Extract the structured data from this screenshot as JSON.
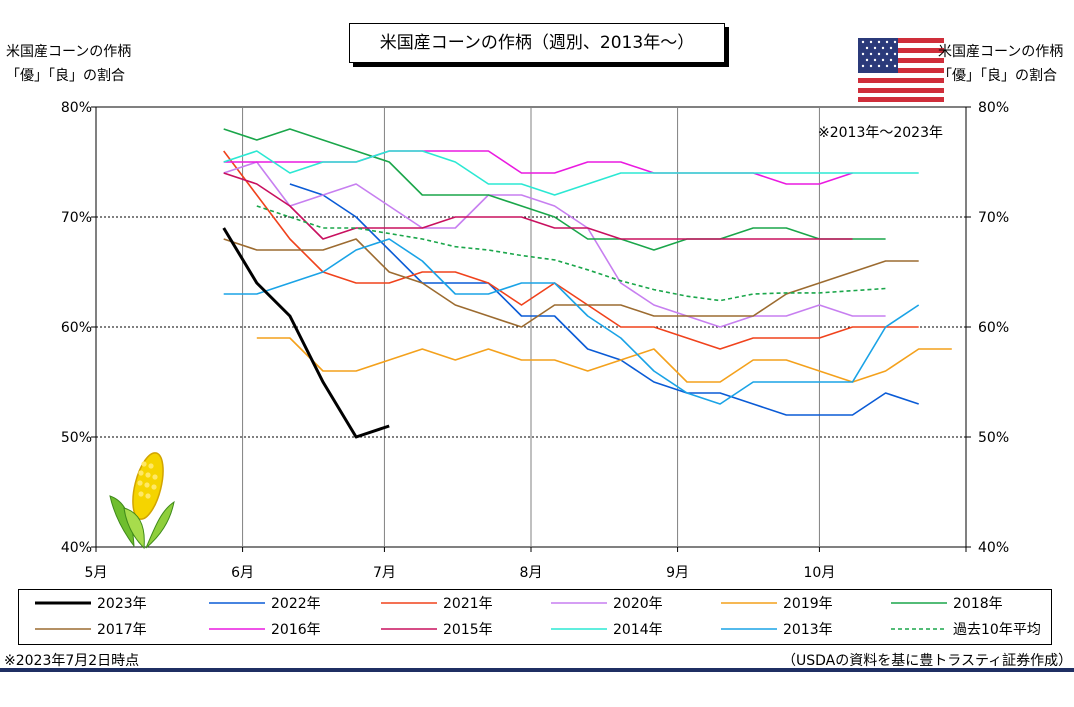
{
  "chart_data": {
    "type": "line",
    "title": "米国産コーンの作柄（週別、2013年～）",
    "ylabel_left": [
      "米国産コーンの作柄",
      "「優」「良」の割合"
    ],
    "ylabel_right": [
      "米国産コーンの作柄",
      "「優」「良」の割合"
    ],
    "annotation": "※2013年～2023年",
    "ylim": [
      40,
      80
    ],
    "yticks": [
      "40%",
      "50%",
      "60%",
      "70%",
      "80%"
    ],
    "ytick_values": [
      40,
      50,
      60,
      70,
      80
    ],
    "xlim": [
      "2023-05-01",
      "2023-11-01"
    ],
    "xticks": [
      {
        "label": "5月",
        "date": "2023-05-01"
      },
      {
        "label": "6月",
        "date": "2023-06-01"
      },
      {
        "label": "7月",
        "date": "2023-07-01"
      },
      {
        "label": "8月",
        "date": "2023-08-01"
      },
      {
        "label": "9月",
        "date": "2023-09-01"
      },
      {
        "label": "10月",
        "date": "2023-10-01"
      },
      {
        "label": "",
        "date": "2023-11-01"
      }
    ],
    "grid": true,
    "legend": "bottom",
    "series": [
      {
        "name": "2023年",
        "color": "#000000",
        "width": 3,
        "dash": "",
        "x": [
          "2023-05-28",
          "2023-06-04",
          "2023-06-11",
          "2023-06-18",
          "2023-06-25",
          "2023-07-02"
        ],
        "y": [
          69,
          64,
          61,
          55,
          50,
          51
        ]
      },
      {
        "name": "2022年",
        "color": "#0a5bd6",
        "width": 1.6,
        "dash": "",
        "x": [
          "2023-06-11",
          "2023-06-18",
          "2023-06-25",
          "2023-07-02",
          "2023-07-09",
          "2023-07-16",
          "2023-07-23",
          "2023-07-30",
          "2023-08-06",
          "2023-08-13",
          "2023-08-20",
          "2023-08-27",
          "2023-09-03",
          "2023-09-10",
          "2023-09-17",
          "2023-09-24",
          "2023-10-01",
          "2023-10-08",
          "2023-10-15",
          "2023-10-22"
        ],
        "y": [
          73,
          72,
          70,
          67,
          64,
          64,
          64,
          61,
          61,
          58,
          57,
          55,
          54,
          54,
          53,
          52,
          52,
          52,
          54,
          53
        ]
      },
      {
        "name": "2021年",
        "color": "#f0421c",
        "width": 1.6,
        "dash": "",
        "x": [
          "2023-05-28",
          "2023-06-04",
          "2023-06-11",
          "2023-06-18",
          "2023-06-25",
          "2023-07-02",
          "2023-07-09",
          "2023-07-16",
          "2023-07-23",
          "2023-07-30",
          "2023-08-06",
          "2023-08-13",
          "2023-08-20",
          "2023-08-27",
          "2023-09-03",
          "2023-09-10",
          "2023-09-17",
          "2023-09-24",
          "2023-10-01",
          "2023-10-08",
          "2023-10-15",
          "2023-10-22"
        ],
        "y": [
          76,
          72,
          68,
          65,
          64,
          64,
          65,
          65,
          64,
          62,
          64,
          62,
          60,
          60,
          59,
          58,
          59,
          59,
          59,
          60,
          60,
          60
        ]
      },
      {
        "name": "2020年",
        "color": "#c77ff0",
        "width": 1.6,
        "dash": "",
        "x": [
          "2023-05-28",
          "2023-06-04",
          "2023-06-11",
          "2023-06-18",
          "2023-06-25",
          "2023-07-02",
          "2023-07-09",
          "2023-07-16",
          "2023-07-23",
          "2023-07-30",
          "2023-08-06",
          "2023-08-13",
          "2023-08-20",
          "2023-08-27",
          "2023-09-03",
          "2023-09-10",
          "2023-09-17",
          "2023-09-24",
          "2023-10-01",
          "2023-10-08",
          "2023-10-15"
        ],
        "y": [
          74,
          75,
          71,
          72,
          73,
          71,
          69,
          69,
          72,
          72,
          71,
          69,
          64,
          62,
          61,
          60,
          61,
          61,
          62,
          61,
          61
        ]
      },
      {
        "name": "2019年",
        "color": "#f4a11c",
        "width": 1.6,
        "dash": "",
        "x": [
          "2023-06-04",
          "2023-06-11",
          "2023-06-18",
          "2023-06-25",
          "2023-07-02",
          "2023-07-09",
          "2023-07-16",
          "2023-07-23",
          "2023-07-30",
          "2023-08-06",
          "2023-08-13",
          "2023-08-20",
          "2023-08-27",
          "2023-09-03",
          "2023-09-10",
          "2023-09-17",
          "2023-09-24",
          "2023-10-01",
          "2023-10-08",
          "2023-10-15",
          "2023-10-22",
          "2023-10-29"
        ],
        "y": [
          59,
          59,
          56,
          56,
          57,
          58,
          57,
          58,
          57,
          57,
          56,
          57,
          58,
          55,
          55,
          57,
          57,
          56,
          55,
          56,
          58,
          58
        ]
      },
      {
        "name": "2018年",
        "color": "#1aa64a",
        "width": 1.6,
        "dash": "",
        "x": [
          "2023-05-28",
          "2023-06-04",
          "2023-06-11",
          "2023-06-18",
          "2023-06-25",
          "2023-07-02",
          "2023-07-09",
          "2023-07-16",
          "2023-07-23",
          "2023-07-30",
          "2023-08-06",
          "2023-08-13",
          "2023-08-20",
          "2023-08-27",
          "2023-09-03",
          "2023-09-10",
          "2023-09-17",
          "2023-09-24",
          "2023-10-01",
          "2023-10-08",
          "2023-10-15"
        ],
        "y": [
          78,
          77,
          78,
          77,
          76,
          75,
          72,
          72,
          72,
          71,
          70,
          68,
          68,
          67,
          68,
          68,
          69,
          69,
          68,
          68,
          68
        ]
      },
      {
        "name": "2017年",
        "color": "#9c6b30",
        "width": 1.6,
        "dash": "",
        "x": [
          "2023-05-28",
          "2023-06-04",
          "2023-06-11",
          "2023-06-18",
          "2023-06-25",
          "2023-07-02",
          "2023-07-09",
          "2023-07-16",
          "2023-07-23",
          "2023-07-30",
          "2023-08-06",
          "2023-08-13",
          "2023-08-20",
          "2023-08-27",
          "2023-09-03",
          "2023-09-10",
          "2023-09-17",
          "2023-09-24",
          "2023-10-01",
          "2023-10-08",
          "2023-10-15",
          "2023-10-22"
        ],
        "y": [
          68,
          67,
          67,
          67,
          68,
          65,
          64,
          62,
          61,
          60,
          62,
          62,
          62,
          61,
          61,
          61,
          61,
          63,
          64,
          65,
          66,
          66
        ]
      },
      {
        "name": "2016年",
        "color": "#ea1ae0",
        "width": 1.6,
        "dash": "",
        "x": [
          "2023-05-28",
          "2023-06-04",
          "2023-06-11",
          "2023-06-18",
          "2023-06-25",
          "2023-07-02",
          "2023-07-09",
          "2023-07-16",
          "2023-07-23",
          "2023-07-30",
          "2023-08-06",
          "2023-08-13",
          "2023-08-20",
          "2023-08-27",
          "2023-09-03",
          "2023-09-10",
          "2023-09-17",
          "2023-09-24",
          "2023-10-01",
          "2023-10-08"
        ],
        "y": [
          75,
          75,
          75,
          75,
          75,
          76,
          76,
          76,
          76,
          74,
          74,
          75,
          75,
          74,
          74,
          74,
          74,
          73,
          73,
          74
        ]
      },
      {
        "name": "2015年",
        "color": "#c8105f",
        "width": 1.6,
        "dash": "",
        "x": [
          "2023-05-28",
          "2023-06-04",
          "2023-06-11",
          "2023-06-18",
          "2023-06-25",
          "2023-07-02",
          "2023-07-09",
          "2023-07-16",
          "2023-07-23",
          "2023-07-30",
          "2023-08-06",
          "2023-08-13",
          "2023-08-20",
          "2023-08-27",
          "2023-09-03",
          "2023-09-10",
          "2023-09-17",
          "2023-09-24",
          "2023-10-01",
          "2023-10-08"
        ],
        "y": [
          74,
          73,
          71,
          68,
          69,
          69,
          69,
          70,
          70,
          70,
          69,
          69,
          68,
          68,
          68,
          68,
          68,
          68,
          68,
          68
        ]
      },
      {
        "name": "2014年",
        "color": "#2be8d3",
        "width": 1.6,
        "dash": "",
        "x": [
          "2023-05-28",
          "2023-06-04",
          "2023-06-11",
          "2023-06-18",
          "2023-06-25",
          "2023-07-02",
          "2023-07-09",
          "2023-07-16",
          "2023-07-23",
          "2023-07-30",
          "2023-08-06",
          "2023-08-13",
          "2023-08-20",
          "2023-08-27",
          "2023-09-03",
          "2023-09-10",
          "2023-09-17",
          "2023-09-24",
          "2023-10-01",
          "2023-10-08",
          "2023-10-15",
          "2023-10-22"
        ],
        "y": [
          75,
          76,
          74,
          75,
          75,
          76,
          76,
          75,
          73,
          73,
          72,
          73,
          74,
          74,
          74,
          74,
          74,
          74,
          74,
          74,
          74,
          74
        ]
      },
      {
        "name": "2013年",
        "color": "#1aa3e6",
        "width": 1.6,
        "dash": "",
        "x": [
          "2023-05-28",
          "2023-06-04",
          "2023-06-11",
          "2023-06-18",
          "2023-06-25",
          "2023-07-02",
          "2023-07-09",
          "2023-07-16",
          "2023-07-23",
          "2023-07-30",
          "2023-08-06",
          "2023-08-13",
          "2023-08-20",
          "2023-08-27",
          "2023-09-03",
          "2023-09-10",
          "2023-09-17",
          "2023-09-24",
          "2023-10-01",
          "2023-10-08",
          "2023-10-15",
          "2023-10-22"
        ],
        "y": [
          63,
          63,
          64,
          65,
          67,
          68,
          66,
          63,
          63,
          64,
          64,
          61,
          59,
          56,
          54,
          53,
          55,
          55,
          55,
          55,
          60,
          62
        ]
      },
      {
        "name": "過去10年平均",
        "color": "#1aa64a",
        "width": 1.6,
        "dash": "4,3",
        "x": [
          "2023-06-04",
          "2023-06-11",
          "2023-06-18",
          "2023-06-25",
          "2023-07-02",
          "2023-07-09",
          "2023-07-16",
          "2023-07-23",
          "2023-07-30",
          "2023-08-06",
          "2023-08-13",
          "2023-08-20",
          "2023-08-27",
          "2023-09-03",
          "2023-09-10",
          "2023-09-17",
          "2023-09-24",
          "2023-10-01",
          "2023-10-08",
          "2023-10-15"
        ],
        "y": [
          71,
          70,
          69,
          69,
          68.5,
          68,
          67.3,
          67,
          66.5,
          66.1,
          65.2,
          64.2,
          63.4,
          62.8,
          62.4,
          63.0,
          63.1,
          63.1,
          63.3,
          63.5
        ]
      }
    ]
  },
  "flag_icon": "us-flag-icon",
  "corn_icon": "corn-icon",
  "footer": {
    "left": "※2023年7月2日時点",
    "right": "（USDAの資料を基に豊トラスティ証券作成）"
  }
}
